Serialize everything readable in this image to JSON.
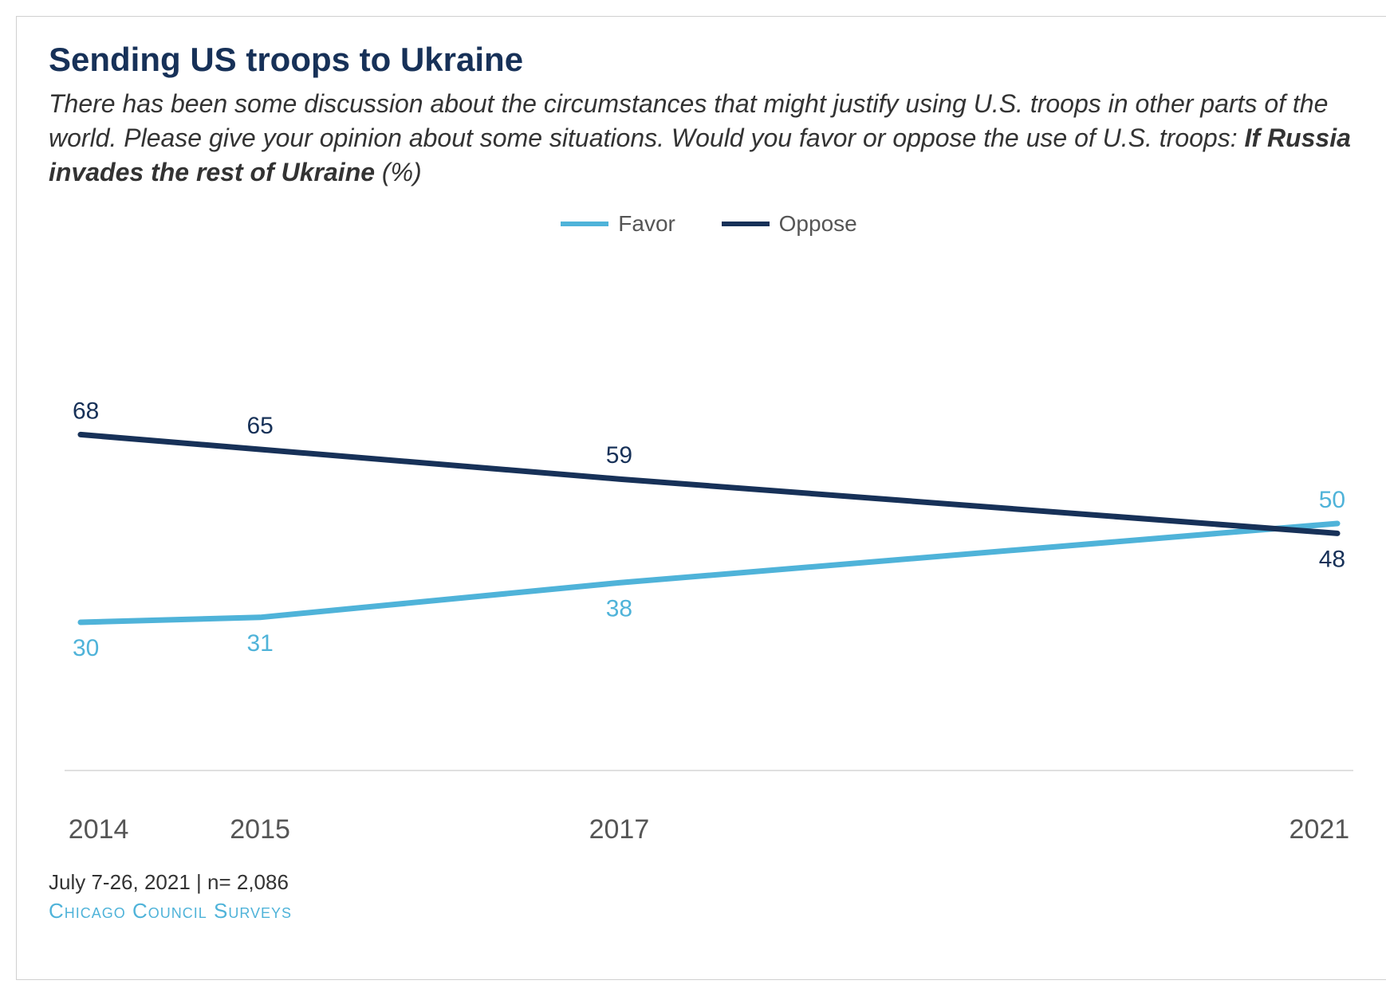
{
  "chart": {
    "type": "line",
    "title": "Sending US troops to Ukraine",
    "subtitle_plain": "There has been some discussion about the circumstances that might justify using U.S. troops in other parts of the world. Please give your opinion about some situations. Would you favor or oppose the use of U.S. troops: ",
    "subtitle_bold": "If Russia invades the rest of Ukraine",
    "subtitle_suffix": " (%)",
    "title_color": "#173158",
    "title_fontsize": 42,
    "subtitle_fontsize": 32,
    "background_color": "#ffffff",
    "border_color": "#d0d0d0",
    "axis_color": "#c0c0c0",
    "text_color": "#555555",
    "x_values": [
      2014,
      2015,
      2017,
      2021
    ],
    "x_labels": [
      "2014",
      "2015",
      "2017",
      "2021"
    ],
    "x_min": 2014,
    "x_max": 2021,
    "y_min": 0,
    "y_max": 100,
    "line_width": 7,
    "label_fontsize": 30,
    "axis_label_fontsize": 34,
    "legend_fontsize": 28,
    "series": [
      {
        "name": "Favor",
        "color": "#4fb3d9",
        "values": [
          30,
          31,
          38,
          50
        ],
        "label_positions": [
          "below",
          "below",
          "below",
          "above"
        ]
      },
      {
        "name": "Oppose",
        "color": "#173158",
        "values": [
          68,
          65,
          59,
          48
        ],
        "label_positions": [
          "above",
          "above",
          "above",
          "below"
        ]
      }
    ],
    "footer_note": "July 7-26, 2021 | n= 2,086",
    "footer_source": "Chicago Council Surveys",
    "footer_source_color": "#4fb3d9",
    "footer_fontsize": 26
  }
}
